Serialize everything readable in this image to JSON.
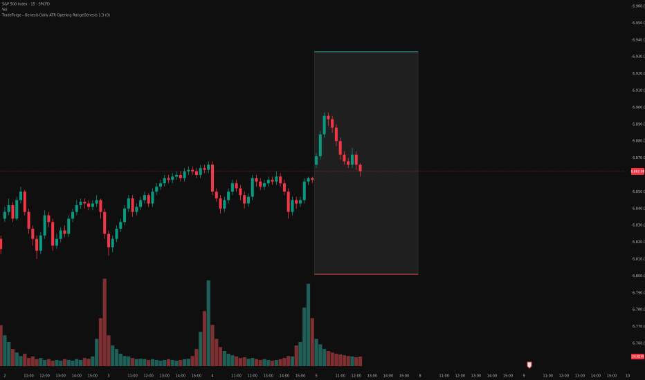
{
  "chart_data": {
    "type": "candlestick",
    "title": "S&P 500 Index · 15 · SPCFD",
    "volume_title": "Vol",
    "indicator": "TradeForge - Genesis Daily ATR Opening RangeGenesis 1.3 (0)",
    "up_color": "#089981",
    "down_color": "#f23645",
    "volume_up_color": "#1f5f57",
    "volume_down_color": "#7e2f31",
    "open": [
      6822,
      6834,
      6838,
      6842,
      6834,
      6845,
      6850,
      6838,
      6828,
      6822,
      6815,
      6824,
      6836,
      6832,
      6818,
      6822,
      6827,
      6825,
      6834,
      6838,
      6842,
      6844,
      6843,
      6841,
      6843,
      6845,
      6838,
      6825,
      6817,
      6822,
      6828,
      6832,
      6840,
      6846,
      6838,
      6841,
      6845,
      6848,
      6843,
      6850,
      6853,
      6855,
      6858,
      6857,
      6859,
      6860,
      6858,
      6862,
      6863,
      6862,
      6860,
      6864,
      6863,
      6866,
      6850,
      6846,
      6840,
      6845,
      6850,
      6855,
      6852,
      6848,
      6843,
      6847,
      6858,
      6856,
      6853,
      6855,
      6857,
      6856,
      6859,
      6855,
      6850,
      6838,
      6845,
      6843,
      6845,
      6856,
      6858,
      6866,
      6871,
      6884,
      6895,
      6893,
      6888,
      6880,
      6872,
      6868,
      6866,
      6872,
      6866
    ],
    "high": [
      6824,
      6841,
      6846,
      6844,
      6847,
      6853,
      6851,
      6840,
      6830,
      6824,
      6826,
      6839,
      6838,
      6834,
      6825,
      6829,
      6830,
      6836,
      6840,
      6845,
      6846,
      6846,
      6845,
      6845,
      6848,
      6846,
      6840,
      6827,
      6824,
      6830,
      6834,
      6842,
      6848,
      6848,
      6843,
      6847,
      6850,
      6849,
      6852,
      6855,
      6857,
      6860,
      6860,
      6861,
      6862,
      6862,
      6864,
      6865,
      6865,
      6864,
      6866,
      6866,
      6868,
      6868,
      6852,
      6848,
      6847,
      6852,
      6857,
      6857,
      6854,
      6850,
      6849,
      6860,
      6860,
      6858,
      6857,
      6859,
      6859,
      6862,
      6861,
      6857,
      6852,
      6847,
      6847,
      6847,
      6858,
      6859,
      6859,
      6873,
      6886,
      6897,
      6897,
      6895,
      6890,
      6882,
      6874,
      6870,
      6876,
      6874,
      6867
    ],
    "low": [
      6813,
      6832,
      6836,
      6832,
      6833,
      6843,
      6836,
      6825,
      6818,
      6810,
      6813,
      6822,
      6829,
      6815,
      6816,
      6820,
      6823,
      6823,
      6832,
      6836,
      6840,
      6840,
      6839,
      6839,
      6841,
      6834,
      6822,
      6812,
      6814,
      6820,
      6826,
      6830,
      6838,
      6835,
      6836,
      6839,
      6843,
      6841,
      6841,
      6848,
      6851,
      6853,
      6855,
      6855,
      6857,
      6856,
      6856,
      6860,
      6860,
      6858,
      6858,
      6861,
      6861,
      6848,
      6844,
      6837,
      6838,
      6843,
      6848,
      6850,
      6845,
      6840,
      6841,
      6845,
      6853,
      6851,
      6851,
      6853,
      6854,
      6854,
      6853,
      6848,
      6834,
      6836,
      6840,
      6841,
      6843,
      6854,
      6855,
      6864,
      6869,
      6882,
      6889,
      6885,
      6877,
      6869,
      6866,
      6864,
      6864,
      6863,
      6859
    ],
    "close": [
      6816,
      6838,
      6842,
      6834,
      6845,
      6850,
      6838,
      6828,
      6822,
      6815,
      6824,
      6836,
      6832,
      6818,
      6822,
      6827,
      6825,
      6834,
      6838,
      6842,
      6844,
      6843,
      6841,
      6843,
      6845,
      6838,
      6825,
      6817,
      6822,
      6828,
      6832,
      6840,
      6846,
      6838,
      6841,
      6845,
      6848,
      6843,
      6850,
      6853,
      6855,
      6858,
      6857,
      6859,
      6860,
      6858,
      6862,
      6863,
      6862,
      6860,
      6864,
      6863,
      6866,
      6850,
      6846,
      6840,
      6845,
      6850,
      6855,
      6852,
      6848,
      6843,
      6847,
      6858,
      6856,
      6853,
      6855,
      6857,
      6856,
      6859,
      6855,
      6850,
      6838,
      6845,
      6843,
      6845,
      6856,
      6858,
      6857,
      6871,
      6884,
      6895,
      6893,
      6888,
      6880,
      6872,
      6868,
      6866,
      6872,
      6866,
      6862.08
    ],
    "volume": [
      105,
      79,
      62,
      44,
      35,
      26,
      32,
      21,
      25,
      18,
      21,
      16,
      18,
      14,
      16,
      14,
      18,
      16,
      14,
      18,
      16,
      21,
      19,
      25,
      70,
      123,
      224,
      79,
      53,
      44,
      32,
      26,
      25,
      21,
      18,
      19,
      18,
      16,
      18,
      16,
      14,
      16,
      18,
      16,
      14,
      16,
      18,
      19,
      26,
      44,
      88,
      141,
      220,
      106,
      70,
      49,
      39,
      32,
      28,
      25,
      21,
      23,
      19,
      21,
      18,
      16,
      18,
      16,
      14,
      16,
      18,
      21,
      26,
      25,
      53,
      62,
      150,
      211,
      123,
      70,
      56,
      44,
      39,
      35,
      32,
      30,
      28,
      26,
      25,
      23,
      24.61
    ],
    "volume_ylim": [
      0,
      230
    ],
    "last_price_label": "6,862.08",
    "last_volume_label": "24.61M",
    "opening_range": {
      "high": 6933,
      "low": 6801,
      "high_color": "#26a69a",
      "low_color": "#ef5350"
    },
    "xlim": [
      -0.2,
      161.3
    ],
    "xticks": [
      {
        "value": 1,
        "label": "2"
      },
      {
        "value": 7,
        "label": "11:00"
      },
      {
        "value": 11,
        "label": "12:00"
      },
      {
        "value": 15,
        "label": "13:00"
      },
      {
        "value": 19,
        "label": "14:00"
      },
      {
        "value": 23,
        "label": "15:00"
      },
      {
        "value": 27,
        "label": "3"
      },
      {
        "value": 33,
        "label": "11:00"
      },
      {
        "value": 37,
        "label": "12:00"
      },
      {
        "value": 41,
        "label": "13:00"
      },
      {
        "value": 45,
        "label": "14:00"
      },
      {
        "value": 49,
        "label": "15:00"
      },
      {
        "value": 53,
        "label": "4"
      },
      {
        "value": 59,
        "label": "11:00"
      },
      {
        "value": 63,
        "label": "12:00"
      },
      {
        "value": 67,
        "label": "13:00"
      },
      {
        "value": 71,
        "label": "14:00"
      },
      {
        "value": 75,
        "label": "15:00"
      },
      {
        "value": 79,
        "label": "5"
      },
      {
        "value": 85,
        "label": "11:00"
      },
      {
        "value": 89,
        "label": "12:00"
      },
      {
        "value": 93,
        "label": "13:00"
      },
      {
        "value": 97,
        "label": "14:00"
      },
      {
        "value": 101,
        "label": "15:00"
      },
      {
        "value": 105,
        "label": "8"
      },
      {
        "value": 111,
        "label": "11:00"
      },
      {
        "value": 115,
        "label": "12:00"
      },
      {
        "value": 119,
        "label": "13:00"
      },
      {
        "value": 123,
        "label": "14:00"
      },
      {
        "value": 127,
        "label": "15:00"
      },
      {
        "value": 131,
        "label": "9"
      },
      {
        "value": 137,
        "label": "11:00"
      },
      {
        "value": 141,
        "label": "12:00"
      },
      {
        "value": 145,
        "label": "13:00"
      },
      {
        "value": 149,
        "label": "14:00"
      },
      {
        "value": 153,
        "label": "15:00"
      },
      {
        "value": 157,
        "label": "10"
      }
    ],
    "ylim": [
      6738.3,
      6963.7
    ],
    "yticks": [
      {
        "value": 6960,
        "label": "6,960.00"
      },
      {
        "value": 6950,
        "label": "6,950.00"
      },
      {
        "value": 6940,
        "label": "6,940.00"
      },
      {
        "value": 6930,
        "label": "6,930.00"
      },
      {
        "value": 6920,
        "label": "6,920.00"
      },
      {
        "value": 6910,
        "label": "6,910.00"
      },
      {
        "value": 6900,
        "label": "6,900.00"
      },
      {
        "value": 6890,
        "label": "6,890.00"
      },
      {
        "value": 6880,
        "label": "6,880.00"
      },
      {
        "value": 6870,
        "label": "6,870.00"
      },
      {
        "value": 6850,
        "label": "6,850.00"
      },
      {
        "value": 6840,
        "label": "6,840.00"
      },
      {
        "value": 6830,
        "label": "6,830.00"
      },
      {
        "value": 6820,
        "label": "6,820.00"
      },
      {
        "value": 6810,
        "label": "6,810.00"
      },
      {
        "value": 6800,
        "label": "6,800.00"
      },
      {
        "value": 6790,
        "label": "6,790.00"
      },
      {
        "value": 6780,
        "label": "6,780.00"
      },
      {
        "value": 6770,
        "label": "6,770.00"
      },
      {
        "value": 6760,
        "label": "6,760.00"
      }
    ],
    "grid": false
  }
}
